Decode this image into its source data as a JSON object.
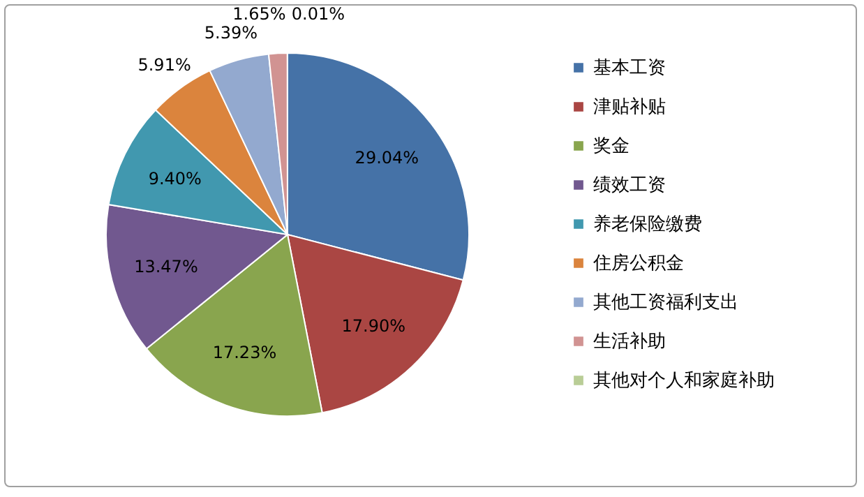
{
  "chart_data": {
    "type": "pie",
    "categories": [
      "基本工资",
      "津贴补贴",
      "奖金",
      "绩效工资",
      "养老保险缴费",
      "住房公积金",
      "其他工资福利支出",
      "生活补助",
      "其他对个人和家庭补助"
    ],
    "values": [
      29.04,
      17.9,
      17.23,
      13.47,
      9.4,
      5.91,
      5.39,
      1.65,
      0.01
    ],
    "colors": [
      "#4572a7",
      "#aa4643",
      "#89a54e",
      "#71588f",
      "#4198af",
      "#db843d",
      "#93a9cf",
      "#d19392",
      "#b9cd96"
    ],
    "value_labels": [
      "29.04%",
      "17.90%",
      "17.23%",
      "13.47%",
      "9.40%",
      "5.91%",
      "5.39%",
      "1.65%",
      "0.01%"
    ],
    "legend": "right"
  }
}
